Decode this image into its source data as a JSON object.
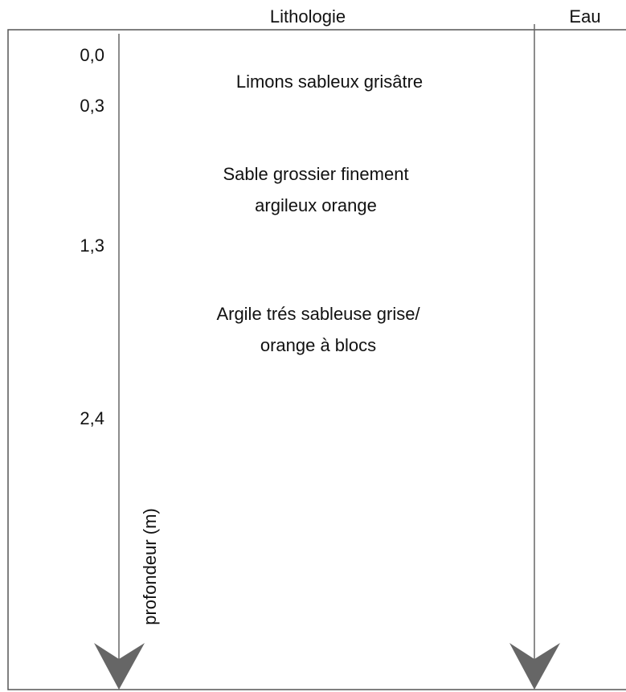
{
  "header": {
    "lithology": "Lithologie",
    "water": "Eau"
  },
  "depths": [
    "0,0",
    "0,3",
    "1,3",
    "2,4"
  ],
  "layers": [
    {
      "lines": [
        "Limons sableux grisâtre"
      ]
    },
    {
      "lines": [
        "Sable grossier finement",
        "argileux orange"
      ]
    },
    {
      "lines": [
        "Argile trés sableuse grise/",
        "orange à blocs"
      ]
    }
  ],
  "axis_label": "profondeur (m)"
}
